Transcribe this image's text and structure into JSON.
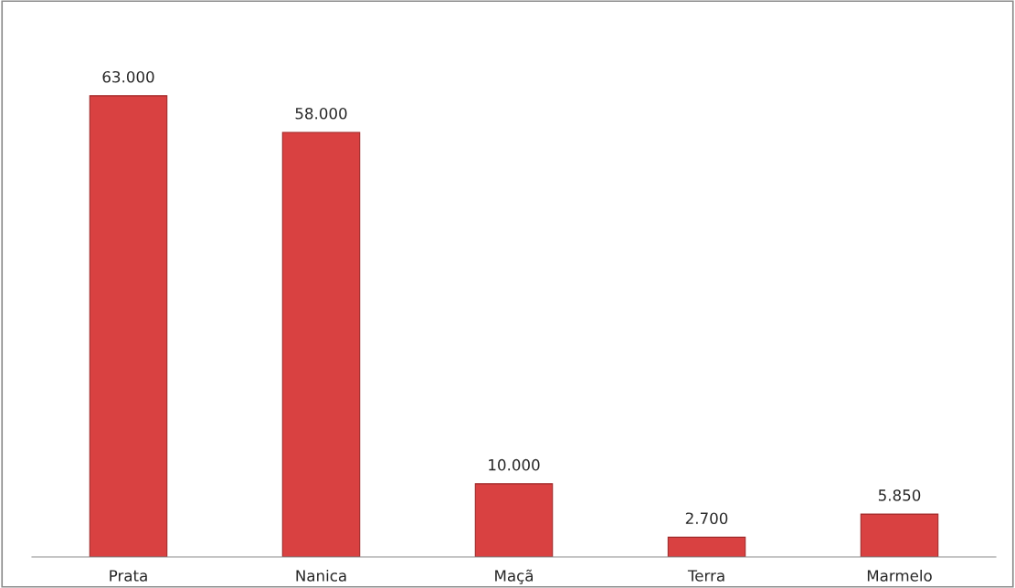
{
  "chart_data": {
    "type": "bar",
    "categories": [
      "Prata",
      "Nanica",
      "Maçã",
      "Terra",
      "Marmelo"
    ],
    "values": [
      63000,
      58000,
      10000,
      2700,
      5850
    ],
    "value_labels": [
      "63.000",
      "58.000",
      "10.000",
      "2.700",
      "5.850"
    ],
    "color": "#d94141",
    "relative": false,
    "grid": false,
    "legend": false
  }
}
